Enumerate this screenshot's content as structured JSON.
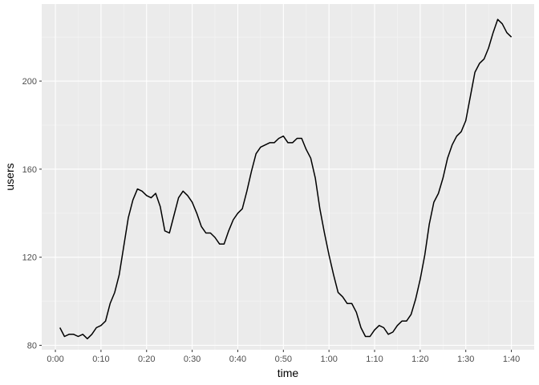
{
  "chart_data": {
    "type": "line",
    "xlabel": "time",
    "ylabel": "users",
    "x_unit": "minutes",
    "xlim": [
      -3,
      105
    ],
    "ylim": [
      78,
      235
    ],
    "x_ticks": [
      {
        "value": 0,
        "label": "0:00"
      },
      {
        "value": 10,
        "label": "0:10"
      },
      {
        "value": 20,
        "label": "0:20"
      },
      {
        "value": 30,
        "label": "0:30"
      },
      {
        "value": 40,
        "label": "0:40"
      },
      {
        "value": 50,
        "label": "0:50"
      },
      {
        "value": 60,
        "label": "1:00"
      },
      {
        "value": 70,
        "label": "1:10"
      },
      {
        "value": 80,
        "label": "1:20"
      },
      {
        "value": 90,
        "label": "1:30"
      },
      {
        "value": 100,
        "label": "1:40"
      }
    ],
    "y_ticks": [
      {
        "value": 80,
        "label": "80"
      },
      {
        "value": 120,
        "label": "120"
      },
      {
        "value": 160,
        "label": "160"
      },
      {
        "value": 200,
        "label": "200"
      }
    ],
    "grid": true,
    "colors": {
      "panel": "#ebebeb",
      "grid_major": "#ffffff",
      "grid_minor": "#f5f5f5",
      "line": "#000000"
    },
    "x": [
      1,
      2,
      3,
      4,
      5,
      6,
      7,
      8,
      9,
      10,
      11,
      12,
      13,
      14,
      15,
      16,
      17,
      18,
      19,
      20,
      21,
      22,
      23,
      24,
      25,
      26,
      27,
      28,
      29,
      30,
      31,
      32,
      33,
      34,
      35,
      36,
      37,
      38,
      39,
      40,
      41,
      42,
      43,
      44,
      45,
      46,
      47,
      48,
      49,
      50,
      51,
      52,
      53,
      54,
      55,
      56,
      57,
      58,
      59,
      60,
      61,
      62,
      63,
      64,
      65,
      66,
      67,
      68,
      69,
      70,
      71,
      72,
      73,
      74,
      75,
      76,
      77,
      78,
      79,
      80,
      81,
      82,
      83,
      84,
      85,
      86,
      87,
      88,
      89,
      90,
      91,
      92,
      93,
      94,
      95,
      96,
      97,
      98,
      99,
      100
    ],
    "y": [
      88,
      84,
      85,
      85,
      84,
      85,
      83,
      85,
      88,
      89,
      91,
      99,
      104,
      112,
      125,
      138,
      146,
      151,
      150,
      148,
      147,
      149,
      143,
      132,
      131,
      139,
      147,
      150,
      148,
      145,
      140,
      134,
      131,
      131,
      129,
      126,
      126,
      132,
      137,
      140,
      142,
      150,
      159,
      167,
      170,
      171,
      172,
      172,
      174,
      175,
      172,
      172,
      174,
      174,
      169,
      165,
      156,
      142,
      131,
      121,
      112,
      104,
      102,
      99,
      99,
      95,
      88,
      84,
      84,
      87,
      89,
      88,
      85,
      86,
      89,
      91,
      91,
      94,
      101,
      110,
      121,
      135,
      145,
      149,
      156,
      165,
      171,
      175,
      177,
      182,
      193,
      204,
      208,
      210,
      215,
      222,
      228,
      226,
      222,
      220
    ]
  }
}
